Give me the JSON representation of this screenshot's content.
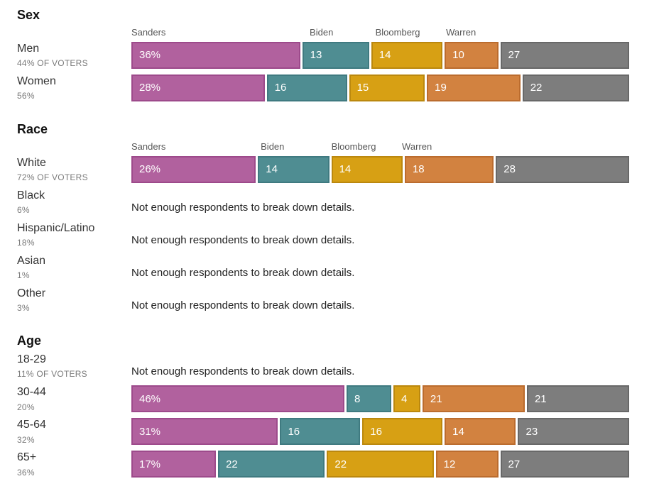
{
  "note_text": "Not enough respondents to break down details.",
  "palette": {
    "sanders": {
      "fill": "#b1619e",
      "border": "#9d4a8b"
    },
    "biden": {
      "fill": "#4f8d92",
      "border": "#3f7a80"
    },
    "bloomberg": {
      "fill": "#d7a014",
      "border": "#bb880e"
    },
    "warren": {
      "fill": "#d28240",
      "border": "#bb6c2e"
    },
    "other": {
      "fill": "#7d7d7d",
      "border": "#686868"
    }
  },
  "chart_data": {
    "type": "bar",
    "subtype": "stacked-horizontal-100pct",
    "legend_position": "labels-above-first-bar-of-section",
    "grid": false,
    "xlim": [
      0,
      100
    ],
    "series_keys": [
      "sanders",
      "biden",
      "bloomberg",
      "warren",
      "other"
    ],
    "series_labels": [
      "Sanders",
      "Biden",
      "Bloomberg",
      "Warren",
      ""
    ],
    "sections": [
      {
        "title": "Sex",
        "rows": [
          {
            "label": "Men",
            "share": "44% OF VOTERS",
            "values": [
              36,
              13,
              14,
              10,
              27
            ],
            "show_candidate_labels": true
          },
          {
            "label": "Women",
            "share": "56%",
            "values": [
              28,
              16,
              15,
              19,
              22
            ],
            "show_candidate_labels": false
          }
        ]
      },
      {
        "title": "Race",
        "rows": [
          {
            "label": "White",
            "share": "72% OF VOTERS",
            "values": [
              26,
              14,
              14,
              18,
              28
            ],
            "show_candidate_labels": true
          },
          {
            "label": "Black",
            "share": "6%",
            "values": null
          },
          {
            "label": "Hispanic/Latino",
            "share": "18%",
            "values": null
          },
          {
            "label": "Asian",
            "share": "1%",
            "values": null
          },
          {
            "label": "Other",
            "share": "3%",
            "values": null
          }
        ]
      },
      {
        "title": "Age",
        "rows": [
          {
            "label": "18-29",
            "share": "11% OF VOTERS",
            "values": null
          },
          {
            "label": "30-44",
            "share": "20%",
            "values": [
              46,
              8,
              4,
              21,
              21
            ],
            "show_candidate_labels": false
          },
          {
            "label": "45-64",
            "share": "32%",
            "values": [
              31,
              16,
              16,
              14,
              23
            ],
            "show_candidate_labels": false
          },
          {
            "label": "65+",
            "share": "36%",
            "values": [
              17,
              22,
              22,
              12,
              27
            ],
            "show_candidate_labels": false
          }
        ]
      }
    ]
  }
}
